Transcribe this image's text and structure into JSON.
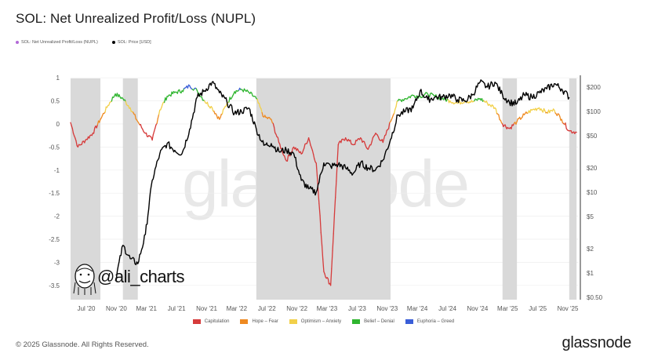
{
  "title": "SOL: Net Unrealized Profit/Loss (NUPL)",
  "top_legend": [
    {
      "label": "SOL: Net Unrealized Profit/Loss (NUPL)",
      "color": "#b36ad8"
    },
    {
      "label": "SOL: Price [USD]",
      "color": "#000000"
    }
  ],
  "watermark": "glassnode",
  "author_tag": "@ali_charts",
  "footer": {
    "copyright": "© 2025 Glassnode. All Rights Reserved.",
    "brand": "glassnode"
  },
  "chart_data": {
    "type": "line",
    "title": "SOL: Net Unrealized Profit/Loss (NUPL)",
    "xlabel": "",
    "ylabel_left": "NUPL",
    "ylabel_right": "Price [USD] (log)",
    "x_ticks": [
      "Jul '20",
      "Nov '20",
      "Mar '21",
      "Jul '21",
      "Nov '21",
      "Mar '22",
      "Jul '22",
      "Nov '22",
      "Mar '23",
      "Jul '23",
      "Nov '23",
      "Mar '24",
      "Jul '24",
      "Nov '24",
      "Mar '25",
      "Jul '25",
      "Nov '25"
    ],
    "y_left_ticks": [
      1,
      0.5,
      0,
      -0.5,
      -1,
      -1.5,
      -2,
      -2.5,
      -3,
      -3.5
    ],
    "y_left_range": [
      -3.6,
      1.05
    ],
    "y_right_ticks": [
      "$200",
      "$100",
      "$50",
      "$20",
      "$10",
      "$5",
      "$2",
      "$1",
      "$0.50"
    ],
    "y_right_range": [
      0.5,
      260
    ],
    "grid": true,
    "legend_position": "bottom",
    "legend": [
      {
        "label": "Capitulation",
        "color": "#d63b3b"
      },
      {
        "label": "Hope – Fear",
        "color": "#ee8a22"
      },
      {
        "label": "Optimism – Anxiety",
        "color": "#f2d04a"
      },
      {
        "label": "Belief – Denial",
        "color": "#2fb52f"
      },
      {
        "label": "Euphoria – Greed",
        "color": "#3a5ed8"
      }
    ],
    "shaded_periods": [
      {
        "start": "2020-04",
        "end": "2020-08"
      },
      {
        "start": "2020-11",
        "end": "2021-01"
      },
      {
        "start": "2022-05",
        "end": "2023-11"
      },
      {
        "start": "2025-02",
        "end": "2025-04"
      },
      {
        "start": "2025-11",
        "end": "2025-12"
      }
    ],
    "series": [
      {
        "name": "SOL: Net Unrealized Profit/Loss (NUPL)",
        "axis": "left",
        "x": [
          "2020-04",
          "2020-05",
          "2020-06",
          "2020-07",
          "2020-08",
          "2020-09",
          "2020-10",
          "2020-11",
          "2020-12",
          "2021-01",
          "2021-02",
          "2021-03",
          "2021-04",
          "2021-05",
          "2021-06",
          "2021-07",
          "2021-08",
          "2021-09",
          "2021-10",
          "2021-11",
          "2021-12",
          "2022-01",
          "2022-02",
          "2022-03",
          "2022-04",
          "2022-05",
          "2022-06",
          "2022-07",
          "2022-08",
          "2022-09",
          "2022-10",
          "2022-11",
          "2022-12",
          "2023-01",
          "2023-02",
          "2023-03",
          "2023-04",
          "2023-05",
          "2023-06",
          "2023-07",
          "2023-08",
          "2023-09",
          "2023-10",
          "2023-11",
          "2023-12",
          "2024-01",
          "2024-02",
          "2024-03",
          "2024-04",
          "2024-05",
          "2024-06",
          "2024-07",
          "2024-08",
          "2024-09",
          "2024-10",
          "2024-11",
          "2024-12",
          "2025-01",
          "2025-02",
          "2025-03",
          "2025-04",
          "2025-05",
          "2025-06",
          "2025-07",
          "2025-08",
          "2025-09",
          "2025-10",
          "2025-11",
          "2025-12"
        ],
        "values": [
          0.03,
          -0.5,
          -0.35,
          -0.2,
          0.1,
          0.4,
          0.65,
          0.55,
          0.35,
          0.05,
          -0.2,
          -0.35,
          0.3,
          0.6,
          0.68,
          0.72,
          0.83,
          0.72,
          0.5,
          0.35,
          0.1,
          0.45,
          0.7,
          0.75,
          0.68,
          0.55,
          0.15,
          0.1,
          -0.4,
          -0.8,
          -0.5,
          -0.65,
          -0.3,
          -0.85,
          -3.2,
          -3.5,
          -0.45,
          -0.3,
          -0.45,
          -0.3,
          -0.55,
          -0.2,
          -0.4,
          0.05,
          0.5,
          0.55,
          0.62,
          0.6,
          0.65,
          0.6,
          0.55,
          0.5,
          0.45,
          0.5,
          0.48,
          0.55,
          0.45,
          0.35,
          0.0,
          -0.1,
          0.05,
          0.2,
          0.3,
          0.35,
          0.25,
          0.3,
          0.1,
          -0.15,
          -0.18
        ],
        "zone_colors": "value-dependent (Capitulation <0, Hope–Fear 0–0.25, Optimism–Anxiety 0.25–0.5, Belief–Denial 0.5–0.75, Euphoria–Greed >0.75)"
      },
      {
        "name": "SOL: Price [USD]",
        "axis": "right",
        "color": "#000000",
        "x": [
          "2020-10",
          "2020-11",
          "2020-12",
          "2021-01",
          "2021-02",
          "2021-03",
          "2021-04",
          "2021-05",
          "2021-06",
          "2021-07",
          "2021-08",
          "2021-09",
          "2021-10",
          "2021-11",
          "2021-12",
          "2022-01",
          "2022-02",
          "2022-03",
          "2022-04",
          "2022-05",
          "2022-06",
          "2022-07",
          "2022-08",
          "2022-09",
          "2022-10",
          "2022-11",
          "2022-12",
          "2023-01",
          "2023-02",
          "2023-03",
          "2023-04",
          "2023-05",
          "2023-06",
          "2023-07",
          "2023-08",
          "2023-09",
          "2023-10",
          "2023-11",
          "2023-12",
          "2024-01",
          "2024-02",
          "2024-03",
          "2024-04",
          "2024-05",
          "2024-06",
          "2024-07",
          "2024-08",
          "2024-09",
          "2024-10",
          "2024-11",
          "2024-12",
          "2025-01",
          "2025-02",
          "2025-03",
          "2025-04",
          "2025-05",
          "2025-06",
          "2025-07",
          "2025-08",
          "2025-09",
          "2025-10",
          "2025-11"
        ],
        "values": [
          0.8,
          2.2,
          1.5,
          1.3,
          3,
          14,
          30,
          40,
          33,
          30,
          60,
          150,
          180,
          230,
          170,
          130,
          95,
          100,
          110,
          60,
          38,
          40,
          32,
          33,
          30,
          14,
          11,
          10,
          23,
          21,
          22,
          20,
          17,
          23,
          20,
          19,
          25,
          45,
          90,
          100,
          110,
          180,
          140,
          150,
          150,
          160,
          140,
          135,
          160,
          230,
          200,
          230,
          160,
          130,
          125,
          160,
          150,
          170,
          190,
          220,
          190,
          150
        ]
      }
    ]
  }
}
